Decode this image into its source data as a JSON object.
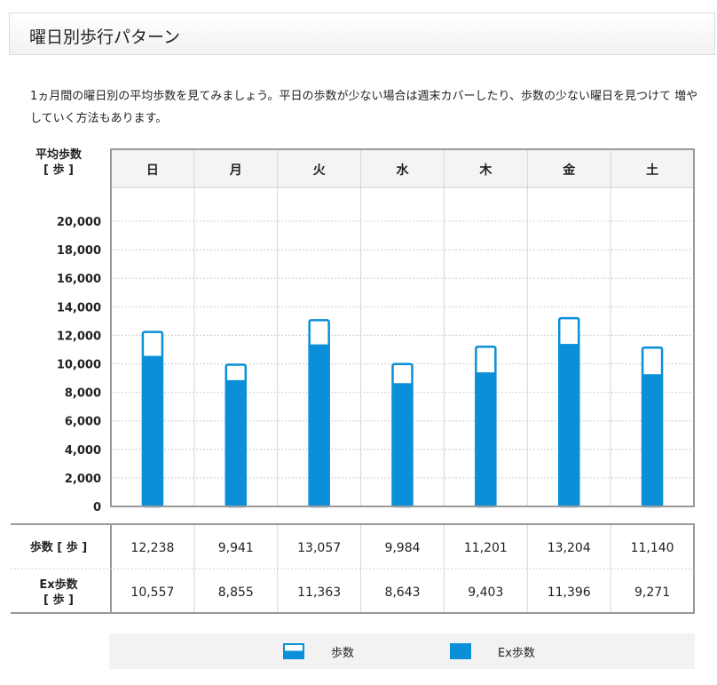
{
  "header": {
    "title": "曜日別歩行パターン"
  },
  "intro": {
    "text": "1ヵ月間の曜日別の平均歩数を見てみましょう。平日の歩数が少ない場合は週末カバーしたり、歩数の少ない曜日を見つけて 増やしていく方法もあります。"
  },
  "colors": {
    "bar": "#0a8fd8",
    "grid": "#cccccc",
    "border": "#999999",
    "header_bg": "#f4f4f4"
  },
  "table": {
    "row_labels": {
      "steps_line1": "歩数 [ 歩 ]",
      "ex_line1": "Ex歩数",
      "ex_line2": "[ 歩 ]"
    }
  },
  "legend": {
    "steps": "歩数",
    "ex": "Ex歩数"
  },
  "chart_data": {
    "type": "bar",
    "ylabel_line1": "平均歩数",
    "ylabel_line2": "[ 歩 ]",
    "categories": [
      "日",
      "月",
      "火",
      "水",
      "木",
      "金",
      "土"
    ],
    "series": [
      {
        "name": "歩数",
        "values": [
          12238,
          9941,
          13057,
          9984,
          11201,
          13204,
          11140
        ]
      },
      {
        "name": "Ex歩数",
        "values": [
          10557,
          8855,
          11363,
          8643,
          9403,
          11396,
          9271
        ]
      }
    ],
    "value_labels": {
      "steps": [
        "12,238",
        "9,941",
        "13,057",
        "9,984",
        "11,201",
        "13,204",
        "11,140"
      ],
      "ex": [
        "10,557",
        "8,855",
        "11,363",
        "8,643",
        "9,403",
        "11,396",
        "9,271"
      ]
    },
    "yticks": [
      "0",
      "2,000",
      "4,000",
      "6,000",
      "8,000",
      "10,000",
      "12,000",
      "14,000",
      "16,000",
      "18,000",
      "20,000"
    ],
    "ylim": [
      0,
      20000
    ],
    "grid": true,
    "legend_position": "bottom"
  }
}
